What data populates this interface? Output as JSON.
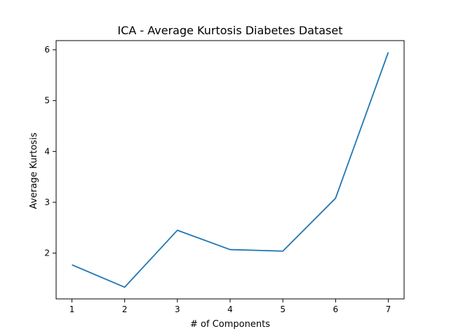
{
  "chart_data": {
    "type": "line",
    "title": "ICA - Average Kurtosis Diabetes Dataset",
    "xlabel": "# of Components",
    "ylabel": "Average Kurtosis",
    "x": [
      1,
      2,
      3,
      4,
      5,
      6,
      7
    ],
    "series": [
      {
        "values": [
          1.77,
          1.33,
          2.45,
          2.07,
          2.04,
          3.08,
          5.95
        ],
        "color": "#1f77b4"
      }
    ],
    "xlim": [
      0.7,
      7.3
    ],
    "ylim": [
      1.1,
      6.18
    ],
    "x_ticks": [
      1,
      2,
      3,
      4,
      5,
      6,
      7
    ],
    "y_ticks": [
      2,
      3,
      4,
      5,
      6
    ],
    "grid": false,
    "legend": "none"
  }
}
